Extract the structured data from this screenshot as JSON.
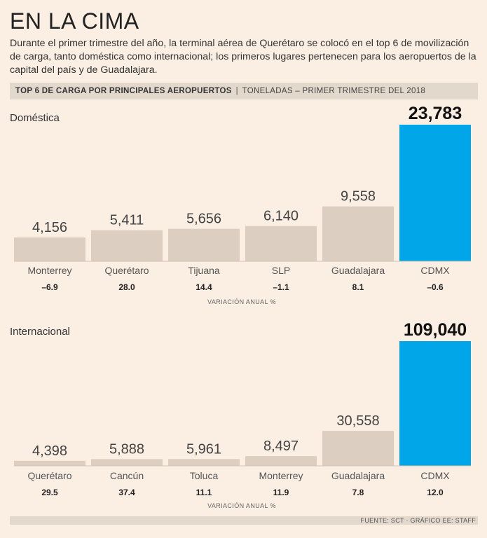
{
  "title": "EN LA CIMA",
  "subtitle": "Durante el primer trimestre del año, la terminal aérea de Querétaro se colocó en el top 6 de movilización de carga, tanto doméstica como internacional; los primeros lugares pertenecen para los aeropuertos de la capital del país y de Guadalajara.",
  "header": {
    "bold": "TOP 6 DE CARGA POR PRINCIPALES AEROPUERTOS",
    "separator": "|",
    "light": "TONELADAS – PRIMER TRIMESTRE DEL 2018"
  },
  "footer": "FUENTE: SCT · GRÁFICO EE: STAFF",
  "colors": {
    "bar": "#dccfc2",
    "highlight": "#00a6e8",
    "background": "#fbeee2"
  },
  "chart_data": [
    {
      "type": "bar",
      "title": "Doméstica",
      "categories": [
        "Monterrey",
        "Querétaro",
        "Tijuana",
        "SLP",
        "Guadalajara",
        "CDMX"
      ],
      "values": [
        4156,
        5411,
        5656,
        6140,
        9558,
        23783
      ],
      "value_labels": [
        "4,156",
        "5,411",
        "5,656",
        "6,140",
        "9,558",
        "23,783"
      ],
      "variation_label": "VARIACIÓN ANUAL %",
      "variation": [
        -6.9,
        28.0,
        14.4,
        -1.1,
        8.1,
        -0.6
      ],
      "variation_labels": [
        "–6.9",
        "28.0",
        "14.4",
        "–1.1",
        "8.1",
        "–0.6"
      ],
      "highlight_index": 5
    },
    {
      "type": "bar",
      "title": "Internacional",
      "categories": [
        "Querétaro",
        "Cancún",
        "Toluca",
        "Monterrey",
        "Guadalajara",
        "CDMX"
      ],
      "values": [
        4398,
        5888,
        5961,
        8497,
        30558,
        109040
      ],
      "value_labels": [
        "4,398",
        "5,888",
        "5,961",
        "8,497",
        "30,558",
        "109,040"
      ],
      "variation_label": "VARIACIÓN ANUAL %",
      "variation": [
        29.5,
        37.4,
        11.1,
        11.9,
        7.8,
        12.0
      ],
      "variation_labels": [
        "29.5",
        "37.4",
        "11.1",
        "11.9",
        "7.8",
        "12.0"
      ],
      "highlight_index": 5
    }
  ]
}
